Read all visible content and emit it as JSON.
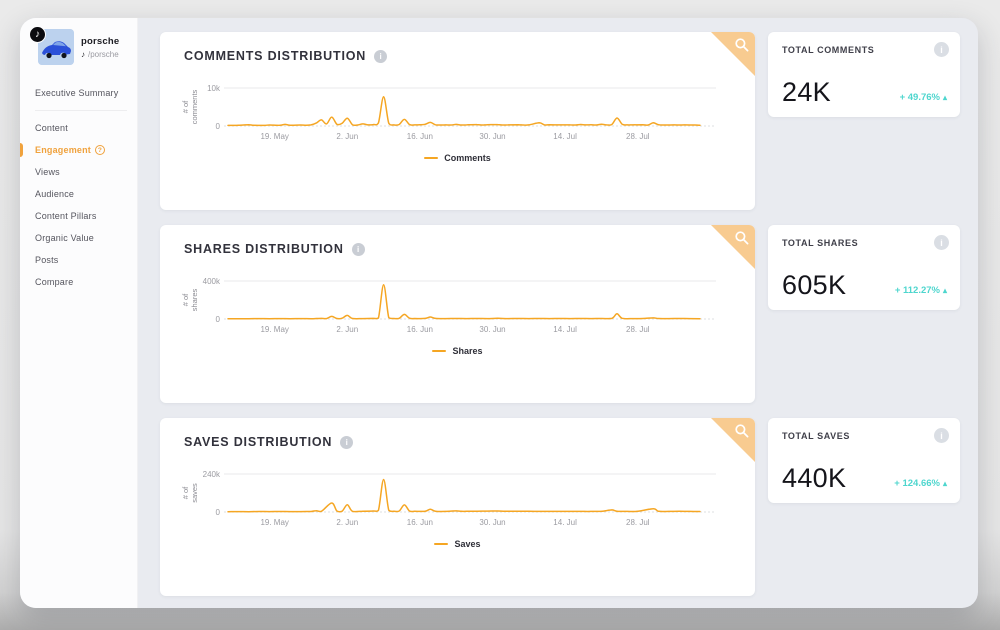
{
  "icons": {
    "tiktok_note": "♪",
    "info": "i",
    "help": "?",
    "trend_up": "▴"
  },
  "colors": {
    "accent_orange": "#F5A623",
    "accent_teal": "#4ED6CE",
    "corner_fold": "#F8CB90",
    "active_nav": "#F0A23D"
  },
  "profile": {
    "name": "porsche",
    "handle": "/porsche",
    "platform": "tiktok"
  },
  "sidebar": {
    "items": [
      {
        "label": "Executive Summary",
        "active": false,
        "divider_after": true
      },
      {
        "label": "Content",
        "active": false
      },
      {
        "label": "Engagement",
        "active": true,
        "has_help_icon": true
      },
      {
        "label": "Views",
        "active": false
      },
      {
        "label": "Audience",
        "active": false
      },
      {
        "label": "Content Pillars",
        "active": false
      },
      {
        "label": "Organic Value",
        "active": false
      },
      {
        "label": "Posts",
        "active": false
      },
      {
        "label": "Compare",
        "active": false
      }
    ]
  },
  "kpis": [
    {
      "label": "TOTAL COMMENTS",
      "value": "24K",
      "delta": "+ 49.76%",
      "direction": "up"
    },
    {
      "label": "TOTAL SHARES",
      "value": "605K",
      "delta": "+ 112.27%",
      "direction": "up"
    },
    {
      "label": "TOTAL SAVES",
      "value": "440K",
      "delta": "+ 124.66%",
      "direction": "up"
    }
  ],
  "chart_data": [
    {
      "type": "line",
      "title": "COMMENTS DISTRIBUTION",
      "ylabel": "# of comments",
      "ylabel_lines": [
        "# of",
        "comments"
      ],
      "ylim": [
        0,
        10000
      ],
      "y_ticks": [
        {
          "value": 10000,
          "label": "10k"
        },
        {
          "value": 0,
          "label": "0"
        }
      ],
      "x_range_days": [
        0,
        91
      ],
      "x_ticks": [
        {
          "day": 9,
          "label": "19. May"
        },
        {
          "day": 23,
          "label": "2. Jun"
        },
        {
          "day": 37,
          "label": "16. Jun"
        },
        {
          "day": 51,
          "label": "30. Jun"
        },
        {
          "day": 65,
          "label": "14. Jul"
        },
        {
          "day": 79,
          "label": "28. Jul"
        }
      ],
      "legend": {
        "position": "bottom",
        "entries": [
          "Comments"
        ]
      },
      "grid": "horizontal-only",
      "series": [
        {
          "name": "Comments",
          "color": "#F5A623",
          "points": [
            [
              0,
              150
            ],
            [
              2,
              200
            ],
            [
              4,
              330
            ],
            [
              5,
              180
            ],
            [
              7,
              160
            ],
            [
              8,
              270
            ],
            [
              10,
              180
            ],
            [
              11,
              430
            ],
            [
              12,
              200
            ],
            [
              14,
              260
            ],
            [
              15,
              180
            ],
            [
              16,
              300
            ],
            [
              17,
              750
            ],
            [
              18,
              1600
            ],
            [
              19,
              550
            ],
            [
              20,
              2350
            ],
            [
              21,
              450
            ],
            [
              22,
              700
            ],
            [
              23,
              2050
            ],
            [
              24,
              350
            ],
            [
              25,
              250
            ],
            [
              26,
              550
            ],
            [
              27,
              280
            ],
            [
              28,
              380
            ],
            [
              29,
              800
            ],
            [
              30,
              7700
            ],
            [
              31,
              700
            ],
            [
              32,
              280
            ],
            [
              33,
              400
            ],
            [
              34,
              1750
            ],
            [
              35,
              380
            ],
            [
              36,
              280
            ],
            [
              37,
              320
            ],
            [
              38,
              450
            ],
            [
              39,
              950
            ],
            [
              40,
              320
            ],
            [
              41,
              250
            ],
            [
              42,
              300
            ],
            [
              43,
              250
            ],
            [
              44,
              430
            ],
            [
              45,
              250
            ],
            [
              46,
              300
            ],
            [
              48,
              380
            ],
            [
              49,
              250
            ],
            [
              50,
              330
            ],
            [
              52,
              380
            ],
            [
              53,
              250
            ],
            [
              54,
              300
            ],
            [
              56,
              330
            ],
            [
              57,
              250
            ],
            [
              58,
              280
            ],
            [
              60,
              830
            ],
            [
              61,
              300
            ],
            [
              62,
              330
            ],
            [
              64,
              280
            ],
            [
              66,
              300
            ],
            [
              67,
              250
            ],
            [
              68,
              400
            ],
            [
              69,
              280
            ],
            [
              70,
              330
            ],
            [
              71,
              250
            ],
            [
              72,
              450
            ],
            [
              73,
              300
            ],
            [
              74,
              400
            ],
            [
              75,
              2100
            ],
            [
              76,
              450
            ],
            [
              77,
              280
            ],
            [
              78,
              300
            ],
            [
              80,
              330
            ],
            [
              81,
              250
            ],
            [
              82,
              830
            ],
            [
              83,
              330
            ],
            [
              84,
              250
            ],
            [
              86,
              300
            ],
            [
              87,
              250
            ],
            [
              88,
              280
            ],
            [
              90,
              250
            ],
            [
              91,
              200
            ]
          ]
        }
      ]
    },
    {
      "type": "line",
      "title": "SHARES DISTRIBUTION",
      "ylabel": "# of shares",
      "ylabel_lines": [
        "# of",
        "shares"
      ],
      "ylim": [
        0,
        400000
      ],
      "y_ticks": [
        {
          "value": 400000,
          "label": "400k"
        },
        {
          "value": 0,
          "label": "0"
        }
      ],
      "x_range_days": [
        0,
        91
      ],
      "x_ticks": [
        {
          "day": 9,
          "label": "19. May"
        },
        {
          "day": 23,
          "label": "2. Jun"
        },
        {
          "day": 37,
          "label": "16. Jun"
        },
        {
          "day": 51,
          "label": "30. Jun"
        },
        {
          "day": 65,
          "label": "14. Jul"
        },
        {
          "day": 79,
          "label": "28. Jul"
        }
      ],
      "legend": {
        "position": "bottom",
        "entries": [
          "Shares"
        ]
      },
      "grid": "horizontal-only",
      "series": [
        {
          "name": "Shares",
          "color": "#F5A623",
          "points": [
            [
              0,
              3000
            ],
            [
              2,
              3600
            ],
            [
              4,
              3000
            ],
            [
              6,
              4200
            ],
            [
              8,
              3200
            ],
            [
              10,
              3800
            ],
            [
              12,
              3000
            ],
            [
              14,
              4000
            ],
            [
              16,
              3400
            ],
            [
              17,
              5000
            ],
            [
              18,
              6500
            ],
            [
              19,
              4500
            ],
            [
              20,
              27000
            ],
            [
              21,
              5000
            ],
            [
              22,
              8000
            ],
            [
              23,
              38000
            ],
            [
              24,
              5000
            ],
            [
              26,
              4500
            ],
            [
              28,
              6000
            ],
            [
              29,
              9000
            ],
            [
              30,
              360000
            ],
            [
              31,
              14000
            ],
            [
              32,
              5000
            ],
            [
              33,
              7000
            ],
            [
              34,
              48000
            ],
            [
              35,
              8000
            ],
            [
              36,
              5000
            ],
            [
              38,
              6000
            ],
            [
              39,
              21000
            ],
            [
              40,
              6000
            ],
            [
              42,
              4200
            ],
            [
              44,
              5000
            ],
            [
              46,
              4200
            ],
            [
              48,
              5000
            ],
            [
              50,
              4400
            ],
            [
              52,
              7000
            ],
            [
              54,
              4200
            ],
            [
              56,
              5000
            ],
            [
              58,
              4400
            ],
            [
              60,
              5200
            ],
            [
              62,
              4200
            ],
            [
              64,
              4800
            ],
            [
              66,
              4200
            ],
            [
              68,
              5000
            ],
            [
              70,
              4400
            ],
            [
              72,
              5600
            ],
            [
              74,
              6000
            ],
            [
              75,
              55000
            ],
            [
              76,
              7000
            ],
            [
              78,
              4400
            ],
            [
              80,
              5000
            ],
            [
              82,
              12000
            ],
            [
              83,
              5000
            ],
            [
              85,
              4400
            ],
            [
              87,
              5000
            ],
            [
              89,
              4200
            ],
            [
              91,
              3600
            ]
          ]
        }
      ]
    },
    {
      "type": "line",
      "title": "SAVES DISTRIBUTION",
      "ylabel": "# of saves",
      "ylabel_lines": [
        "# of",
        "saves"
      ],
      "ylim": [
        0,
        240000
      ],
      "y_ticks": [
        {
          "value": 240000,
          "label": "240k"
        },
        {
          "value": 0,
          "label": "0"
        }
      ],
      "x_range_days": [
        0,
        91
      ],
      "x_ticks": [
        {
          "day": 9,
          "label": "19. May"
        },
        {
          "day": 23,
          "label": "2. Jun"
        },
        {
          "day": 37,
          "label": "16. Jun"
        },
        {
          "day": 51,
          "label": "30. Jun"
        },
        {
          "day": 65,
          "label": "14. Jul"
        },
        {
          "day": 79,
          "label": "28. Jul"
        }
      ],
      "legend": {
        "position": "bottom",
        "entries": [
          "Saves"
        ]
      },
      "grid": "horizontal-only",
      "series": [
        {
          "name": "Saves",
          "color": "#F5A623",
          "points": [
            [
              0,
              2000
            ],
            [
              2,
              2600
            ],
            [
              4,
              2200
            ],
            [
              6,
              3000
            ],
            [
              8,
              2400
            ],
            [
              10,
              3000
            ],
            [
              12,
              2400
            ],
            [
              14,
              2800
            ],
            [
              16,
              3400
            ],
            [
              17,
              8500
            ],
            [
              18,
              4200
            ],
            [
              20,
              57000
            ],
            [
              21,
              6000
            ],
            [
              22,
              5000
            ],
            [
              23,
              46000
            ],
            [
              24,
              4200
            ],
            [
              26,
              5000
            ],
            [
              28,
              6000
            ],
            [
              29,
              10000
            ],
            [
              30,
              205000
            ],
            [
              31,
              11000
            ],
            [
              32,
              4400
            ],
            [
              33,
              6000
            ],
            [
              34,
              45000
            ],
            [
              35,
              6500
            ],
            [
              36,
              4400
            ],
            [
              38,
              5000
            ],
            [
              39,
              17000
            ],
            [
              40,
              5000
            ],
            [
              42,
              3800
            ],
            [
              44,
              7000
            ],
            [
              45,
              4200
            ],
            [
              46,
              4400
            ],
            [
              48,
              5000
            ],
            [
              50,
              5600
            ],
            [
              52,
              6000
            ],
            [
              54,
              4400
            ],
            [
              56,
              4800
            ],
            [
              58,
              4400
            ],
            [
              60,
              4000
            ],
            [
              62,
              3800
            ],
            [
              64,
              3600
            ],
            [
              66,
              4000
            ],
            [
              68,
              3800
            ],
            [
              70,
              3600
            ],
            [
              72,
              4600
            ],
            [
              74,
              13000
            ],
            [
              75,
              5000
            ],
            [
              77,
              3800
            ],
            [
              79,
              4200
            ],
            [
              82,
              21000
            ],
            [
              83,
              4600
            ],
            [
              85,
              4000
            ],
            [
              87,
              4200
            ],
            [
              89,
              3600
            ],
            [
              91,
              3000
            ]
          ]
        }
      ]
    }
  ]
}
